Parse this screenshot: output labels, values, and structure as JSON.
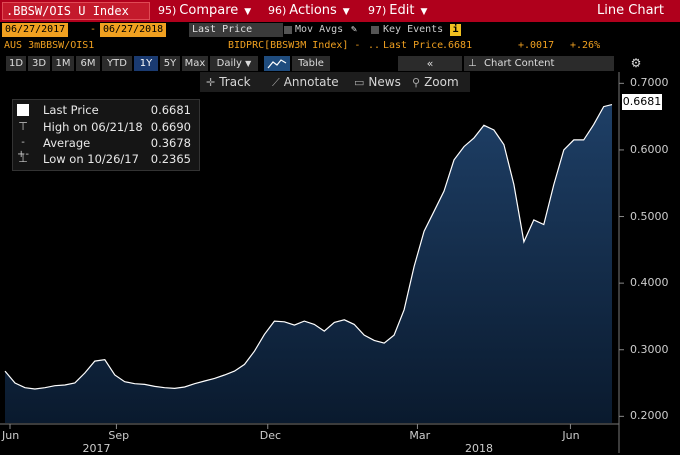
{
  "header": {
    "ticker": ".BBSW/OIS U Index",
    "compare": {
      "num": "95)",
      "label": "Compare"
    },
    "actions": {
      "num": "96)",
      "label": "Actions"
    },
    "edit": {
      "num": "97)",
      "label": "Edit"
    },
    "chart_type": "Line Chart"
  },
  "daterow": {
    "start": "06/27/2017",
    "dash": "-",
    "end": "06/27/2018",
    "field": "Last Price",
    "mov_avgs": "Mov Avgs",
    "key_events": "Key Events",
    "info_icon": "i"
  },
  "security": {
    "name": "AUS 3mBBSW/OIS1",
    "source": "BIDPRC[BBSW3M Index] -",
    "dots": "..",
    "last_price_label": "Last Price",
    "last_price": ".6681",
    "change": "+.0017",
    "change_pct": "+.26%"
  },
  "periods": [
    "1D",
    "3D",
    "1M",
    "6M",
    "YTD",
    "1Y",
    "5Y",
    "Max"
  ],
  "active_period": "1Y",
  "frequency": "Daily",
  "frequency_caret": "▼",
  "table_tab": "Table",
  "nav_prev": "«",
  "chart_content": "Chart Content",
  "tools": {
    "track": "Track",
    "annotate": "Annotate",
    "news": "News",
    "zoom": "Zoom"
  },
  "legend": {
    "last": {
      "label": "Last Price",
      "value": "0.6681"
    },
    "high": {
      "label": "High on 06/21/18",
      "value": "0.6690"
    },
    "avg": {
      "label": "Average",
      "value": "0.3678"
    },
    "low": {
      "label": "Low on 10/26/17",
      "value": "0.2365"
    }
  },
  "last_price_tag": "0.6681",
  "chart_data": {
    "type": "area",
    "ylim": [
      0.19,
      0.705
    ],
    "yticks": [
      "0.7000",
      "0.6000",
      "0.5000",
      "0.4000",
      "0.3000",
      "0.2000"
    ],
    "ytick_values": [
      0.7,
      0.6,
      0.5,
      0.4,
      0.3,
      0.2
    ],
    "xticks": [
      "Jun",
      "Sep",
      "Dec",
      "Mar",
      "Jun"
    ],
    "year_labels": [
      "2017",
      "2018"
    ],
    "xlim": [
      0,
      365
    ],
    "x_tick_days": [
      3,
      67,
      158,
      248,
      340
    ],
    "year_day_positions": [
      55,
      285
    ],
    "series": [
      {
        "x": [
          0,
          6,
          12,
          18,
          24,
          30,
          36,
          42,
          48,
          54,
          60,
          66,
          72,
          78,
          84,
          90,
          96,
          102,
          108,
          114,
          120,
          126,
          132,
          138,
          144,
          150,
          156,
          162,
          168,
          174,
          180,
          186,
          192,
          198,
          204,
          210,
          216,
          222,
          228,
          234,
          240,
          246,
          252,
          258,
          264,
          270,
          276,
          282,
          288,
          294,
          300,
          306,
          312,
          318,
          324,
          330,
          336,
          342,
          348,
          354,
          360,
          365
        ],
        "values": [
          0.268,
          0.25,
          0.243,
          0.241,
          0.243,
          0.246,
          0.247,
          0.25,
          0.265,
          0.283,
          0.285,
          0.262,
          0.252,
          0.249,
          0.248,
          0.245,
          0.243,
          0.242,
          0.244,
          0.249,
          0.253,
          0.257,
          0.262,
          0.268,
          0.278,
          0.298,
          0.323,
          0.343,
          0.342,
          0.337,
          0.343,
          0.338,
          0.328,
          0.341,
          0.345,
          0.338,
          0.322,
          0.314,
          0.31,
          0.322,
          0.36,
          0.425,
          0.478,
          0.508,
          0.538,
          0.585,
          0.605,
          0.618,
          0.637,
          0.63,
          0.608,
          0.548,
          0.462,
          0.495,
          0.488,
          0.548,
          0.6,
          0.615,
          0.615,
          0.638,
          0.665,
          0.668
        ]
      }
    ]
  }
}
